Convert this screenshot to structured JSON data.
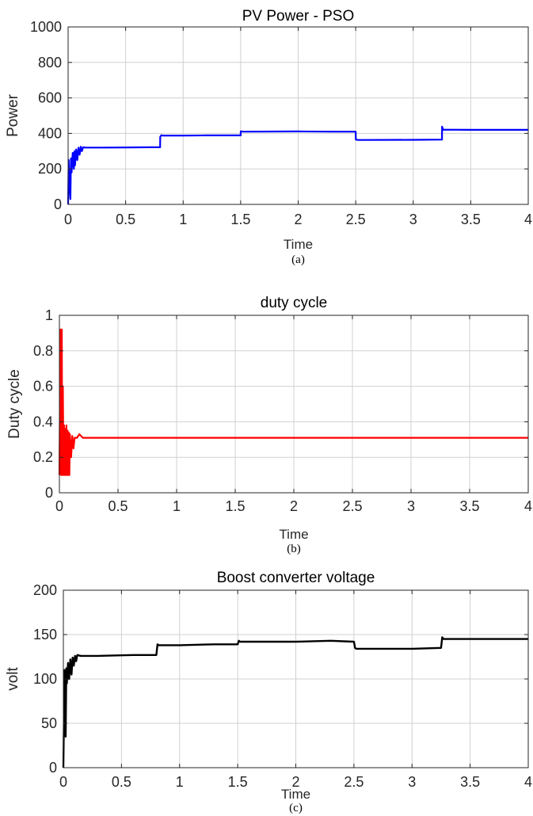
{
  "chart_data": [
    {
      "type": "line",
      "title": "PV Power - PSO",
      "xlabel": "Time",
      "ylabel": "Power",
      "caption": "(a)",
      "xlim": [
        0,
        4
      ],
      "ylim": [
        0,
        1000
      ],
      "xticks": [
        0,
        0.5,
        1,
        1.5,
        2,
        2.5,
        3,
        3.5,
        4
      ],
      "xtick_labels": [
        "0",
        "0.5",
        "1",
        "1.5",
        "2",
        "2.5",
        "3",
        "3.5",
        "4"
      ],
      "yticks": [
        0,
        200,
        400,
        600,
        800,
        1000
      ],
      "ytick_labels": [
        "0",
        "200",
        "400",
        "600",
        "800",
        "1000"
      ],
      "grid": true,
      "color": "#0000ff",
      "x": [
        0,
        0.005,
        0.01,
        0.02,
        0.025,
        0.03,
        0.04,
        0.05,
        0.055,
        0.06,
        0.07,
        0.08,
        0.09,
        0.1,
        0.11,
        0.12,
        0.13,
        0.15,
        0.3,
        0.5,
        0.7,
        0.8,
        0.801,
        0.81,
        0.82,
        1.0,
        1.2,
        1.5,
        1.501,
        1.52,
        2.0,
        2.3,
        2.5,
        2.501,
        2.52,
        3.0,
        3.25,
        3.251,
        3.26,
        3.27,
        3.5,
        4.0
      ],
      "y": [
        0,
        250,
        120,
        30,
        260,
        180,
        290,
        200,
        300,
        220,
        310,
        250,
        320,
        280,
        325,
        300,
        322,
        320,
        320,
        321,
        322,
        322,
        380,
        390,
        388,
        388,
        389,
        389,
        412,
        410,
        411,
        410,
        410,
        365,
        363,
        364,
        365,
        438,
        420,
        421,
        420,
        420
      ]
    },
    {
      "type": "line",
      "title": "duty cycle",
      "xlabel": "Time",
      "ylabel": "Duty cycle",
      "caption": "(b)",
      "xlim": [
        0,
        4
      ],
      "ylim": [
        0,
        1
      ],
      "xticks": [
        0,
        0.5,
        1,
        1.5,
        2,
        2.5,
        3,
        3.5,
        4
      ],
      "xtick_labels": [
        "0",
        "0.5",
        "1",
        "1.5",
        "2",
        "2.5",
        "3",
        "3.5",
        "4"
      ],
      "yticks": [
        0,
        0.2,
        0.4,
        0.6,
        0.8,
        1
      ],
      "ytick_labels": [
        "0",
        "0.2",
        "0.4",
        "0.6",
        "0.8",
        "1"
      ],
      "grid": true,
      "color": "#ff0000",
      "x": [
        0,
        0.005,
        0.01,
        0.015,
        0.02,
        0.025,
        0.03,
        0.035,
        0.04,
        0.045,
        0.05,
        0.055,
        0.06,
        0.065,
        0.07,
        0.075,
        0.08,
        0.085,
        0.09,
        0.1,
        0.11,
        0.12,
        0.13,
        0.15,
        0.17,
        0.2,
        0.25,
        0.5,
        1.0,
        2.0,
        3.0,
        4.0
      ],
      "y": [
        0.1,
        0.5,
        0.92,
        0.1,
        0.92,
        0.1,
        0.6,
        0.1,
        0.38,
        0.1,
        0.36,
        0.1,
        0.38,
        0.1,
        0.35,
        0.1,
        0.34,
        0.1,
        0.33,
        0.2,
        0.32,
        0.25,
        0.31,
        0.31,
        0.33,
        0.31,
        0.31,
        0.31,
        0.31,
        0.31,
        0.31,
        0.31
      ]
    },
    {
      "type": "line",
      "title": "Boost converter voltage",
      "xlabel": "Time",
      "ylabel": "volt",
      "caption": "(c)",
      "xlim": [
        0,
        4
      ],
      "ylim": [
        0,
        200
      ],
      "xticks": [
        0,
        0.5,
        1,
        1.5,
        2,
        2.5,
        3,
        3.5,
        4
      ],
      "xtick_labels": [
        "0",
        "0.5",
        "1",
        "1.5",
        "2",
        "2.5",
        "3",
        "3.5",
        "4"
      ],
      "yticks": [
        0,
        50,
        100,
        150,
        200
      ],
      "ytick_labels": [
        "0",
        "50",
        "100",
        "150",
        "200"
      ],
      "grid": true,
      "color": "#000000",
      "x": [
        0,
        0.01,
        0.015,
        0.02,
        0.025,
        0.03,
        0.04,
        0.05,
        0.06,
        0.07,
        0.08,
        0.09,
        0.1,
        0.11,
        0.12,
        0.15,
        0.3,
        0.6,
        0.8,
        0.81,
        0.82,
        1.0,
        1.3,
        1.5,
        1.51,
        1.52,
        2.0,
        2.3,
        2.5,
        2.51,
        2.52,
        3.0,
        3.25,
        3.26,
        3.27,
        3.5,
        4.0
      ],
      "y": [
        0,
        110,
        75,
        35,
        112,
        95,
        118,
        100,
        122,
        105,
        124,
        115,
        126,
        120,
        127,
        126,
        126,
        127,
        127,
        139,
        138,
        138,
        139,
        139,
        143,
        142,
        142,
        143,
        142,
        135,
        134,
        134,
        135,
        147,
        145,
        145,
        145
      ]
    }
  ]
}
